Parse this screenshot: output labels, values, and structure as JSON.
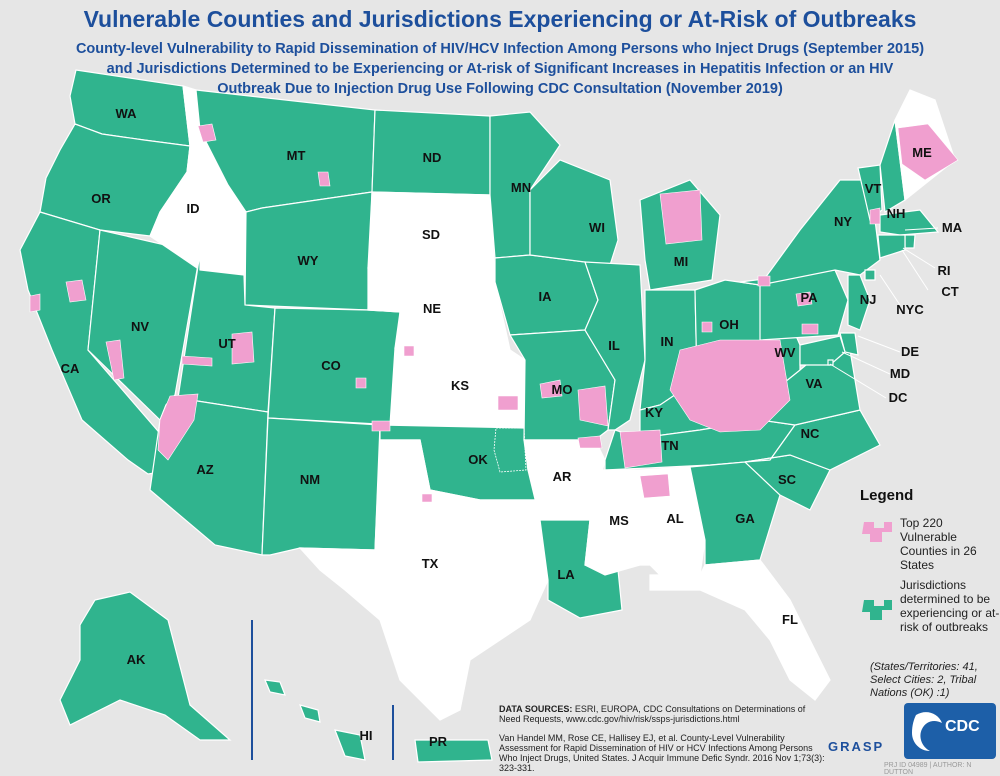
{
  "title": "Vulnerable Counties and Jurisdictions Experiencing or At-Risk of Outbreaks",
  "subtitle_lines": [
    "County-level Vulnerability to Rapid Dissemination of HIV/HCV Infection Among Persons who Inject Drugs (September 2015)",
    "and Jurisdictions Determined to be Experiencing or At-risk of Significant Increases in Hepatitis Infection or an HIV",
    "Outbreak Due to Injection Drug Use Following CDC Consultation (November 2019)"
  ],
  "colors": {
    "jurisdiction": "#30b48e",
    "not_designated": "#ffffff",
    "vulnerable_county": "#f09fcf",
    "background": "#e6e6e6",
    "title": "#1d4f9c"
  },
  "states": [
    {
      "abbr": "WA",
      "status": "jurisdiction"
    },
    {
      "abbr": "OR",
      "status": "jurisdiction"
    },
    {
      "abbr": "CA",
      "status": "jurisdiction"
    },
    {
      "abbr": "NV",
      "status": "jurisdiction"
    },
    {
      "abbr": "ID",
      "status": "none"
    },
    {
      "abbr": "MT",
      "status": "jurisdiction"
    },
    {
      "abbr": "WY",
      "status": "jurisdiction"
    },
    {
      "abbr": "UT",
      "status": "jurisdiction"
    },
    {
      "abbr": "AZ",
      "status": "jurisdiction"
    },
    {
      "abbr": "CO",
      "status": "jurisdiction"
    },
    {
      "abbr": "NM",
      "status": "jurisdiction"
    },
    {
      "abbr": "ND",
      "status": "jurisdiction"
    },
    {
      "abbr": "SD",
      "status": "none"
    },
    {
      "abbr": "NE",
      "status": "none"
    },
    {
      "abbr": "KS",
      "status": "none"
    },
    {
      "abbr": "OK",
      "status": "jurisdiction"
    },
    {
      "abbr": "TX",
      "status": "none"
    },
    {
      "abbr": "MN",
      "status": "jurisdiction"
    },
    {
      "abbr": "IA",
      "status": "jurisdiction"
    },
    {
      "abbr": "MO",
      "status": "jurisdiction"
    },
    {
      "abbr": "AR",
      "status": "none"
    },
    {
      "abbr": "LA",
      "status": "jurisdiction"
    },
    {
      "abbr": "WI",
      "status": "jurisdiction"
    },
    {
      "abbr": "IL",
      "status": "jurisdiction"
    },
    {
      "abbr": "MI",
      "status": "jurisdiction"
    },
    {
      "abbr": "IN",
      "status": "jurisdiction"
    },
    {
      "abbr": "OH",
      "status": "jurisdiction"
    },
    {
      "abbr": "KY",
      "status": "jurisdiction"
    },
    {
      "abbr": "TN",
      "status": "jurisdiction"
    },
    {
      "abbr": "MS",
      "status": "none"
    },
    {
      "abbr": "AL",
      "status": "none"
    },
    {
      "abbr": "GA",
      "status": "jurisdiction"
    },
    {
      "abbr": "FL",
      "status": "none"
    },
    {
      "abbr": "SC",
      "status": "jurisdiction"
    },
    {
      "abbr": "NC",
      "status": "jurisdiction"
    },
    {
      "abbr": "VA",
      "status": "jurisdiction"
    },
    {
      "abbr": "WV",
      "status": "jurisdiction"
    },
    {
      "abbr": "PA",
      "status": "jurisdiction"
    },
    {
      "abbr": "NY",
      "status": "jurisdiction"
    },
    {
      "abbr": "VT",
      "status": "jurisdiction"
    },
    {
      "abbr": "NH",
      "status": "jurisdiction"
    },
    {
      "abbr": "ME",
      "status": "none"
    },
    {
      "abbr": "MA",
      "status": "jurisdiction"
    },
    {
      "abbr": "RI",
      "status": "jurisdiction"
    },
    {
      "abbr": "CT",
      "status": "jurisdiction"
    },
    {
      "abbr": "NJ",
      "status": "jurisdiction"
    },
    {
      "abbr": "DE",
      "status": "jurisdiction"
    },
    {
      "abbr": "MD",
      "status": "jurisdiction"
    },
    {
      "abbr": "DC",
      "status": "jurisdiction"
    },
    {
      "abbr": "NYC",
      "status": "jurisdiction"
    },
    {
      "abbr": "AK",
      "status": "jurisdiction"
    },
    {
      "abbr": "HI",
      "status": "jurisdiction"
    },
    {
      "abbr": "PR",
      "status": "jurisdiction"
    }
  ],
  "legend": {
    "title": "Legend",
    "items": [
      {
        "label": "Top 220 Vulnerable Counties in 26 States",
        "color": "#f09fcf"
      },
      {
        "label": "Jurisdictions determined to be experiencing or at-risk of outbreaks",
        "color": "#30b48e"
      }
    ],
    "note": "(States/Territories: 41, Select Cities: 2, Tribal Nations (OK) :1)"
  },
  "sources": {
    "label": "DATA SOURCES:",
    "text": "ESRI, EUROPA, CDC Consultations on Determinations of Need Requests, www.cdc.gov/hiv/risk/ssps-jurisdictions.html",
    "citation": "Van Handel MM, Rose CE, Hallisey EJ, et al. County-Level Vulnerability Assessment for Rapid Dissemination of HIV or HCV Infections Among Persons Who Inject Drugs, United States. J Acquir Immune Defic Syndr. 2016 Nov 1;73(3): 323-331."
  },
  "logos": {
    "grasp": "GRASP",
    "cdc": "CDC"
  },
  "footer": "PRJ ID 04989 | AUTHOR: N DUTTON"
}
